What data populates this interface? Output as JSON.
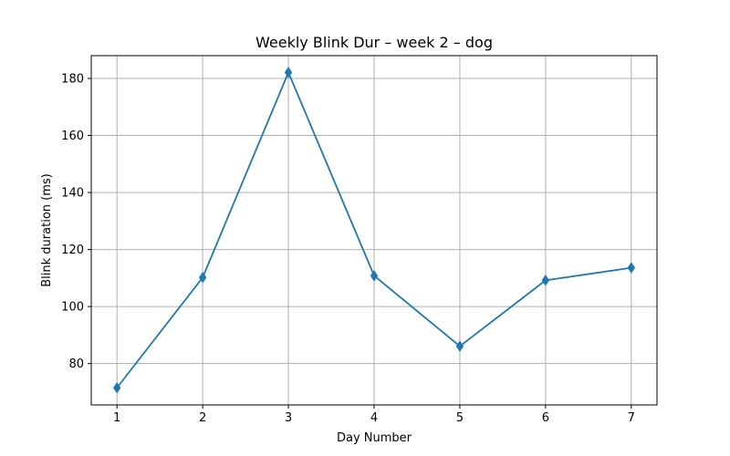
{
  "chart_data": {
    "type": "line",
    "title": "Weekly Blink Dur – week 2 – dog",
    "xlabel": "Day Number",
    "ylabel": "Blink duration (ms)",
    "x": [
      1,
      2,
      3,
      4,
      5,
      6,
      7
    ],
    "xlim": [
      0.7,
      7.3
    ],
    "ylim": [
      65.5,
      188
    ],
    "xticks": [
      1,
      2,
      3,
      4,
      5,
      6,
      7
    ],
    "yticks": [
      80,
      100,
      120,
      140,
      160,
      180
    ],
    "grid": true,
    "series": [
      {
        "values": [
          71.5,
          110.2,
          182.1,
          110.8,
          86.1,
          109.2,
          113.6
        ],
        "color": "#1f77b4",
        "marker": "thin-diamond"
      }
    ]
  }
}
